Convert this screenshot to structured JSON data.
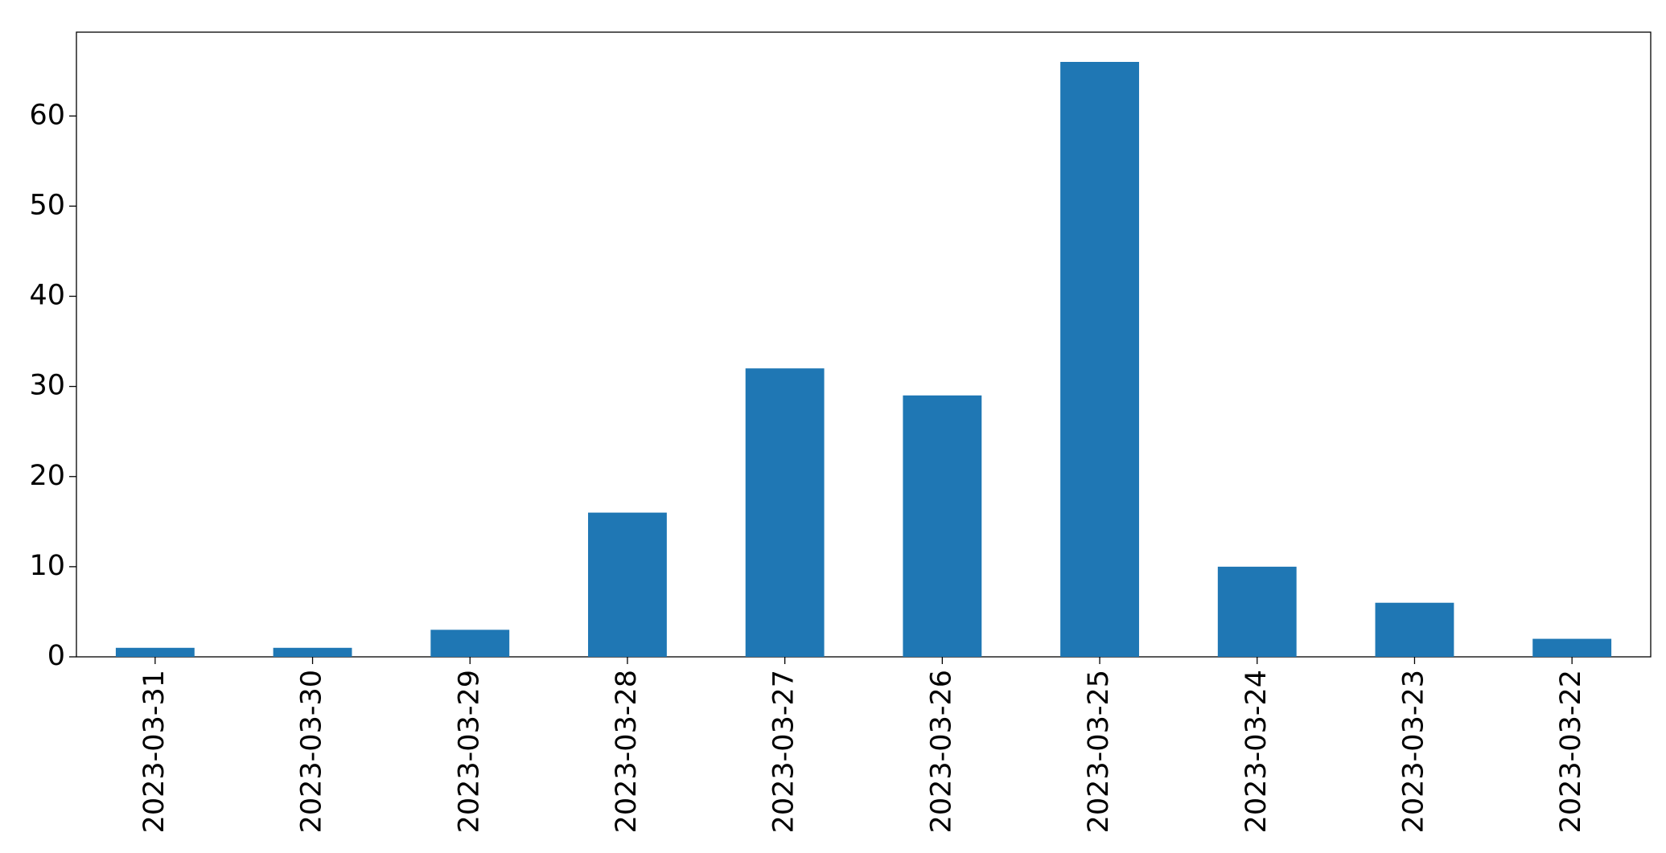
{
  "chart_data": {
    "type": "bar",
    "categories": [
      "2023-03-31",
      "2023-03-30",
      "2023-03-29",
      "2023-03-28",
      "2023-03-27",
      "2023-03-26",
      "2023-03-25",
      "2023-03-24",
      "2023-03-23",
      "2023-03-22"
    ],
    "values": [
      1,
      1,
      3,
      16,
      32,
      29,
      66,
      10,
      6,
      2
    ],
    "color": "#1f77b4",
    "ylim": [
      0,
      69.3
    ],
    "yticks": [
      0,
      10,
      20,
      30,
      40,
      50,
      60
    ],
    "grid": false
  }
}
